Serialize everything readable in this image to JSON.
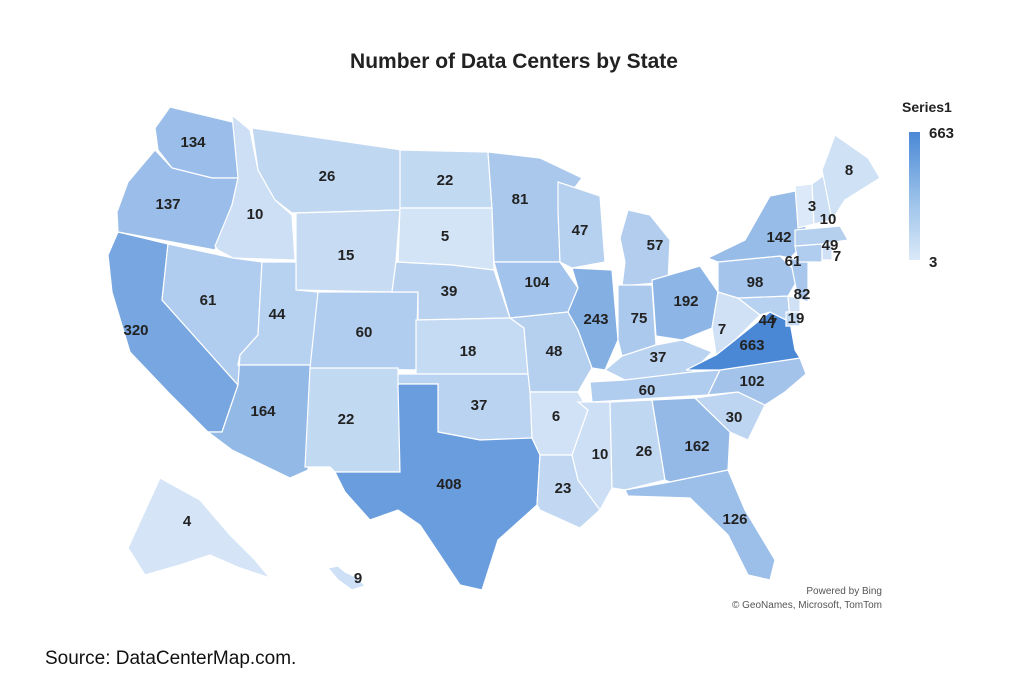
{
  "title": "Number of Data Centers by State",
  "legend": {
    "title": "Series1",
    "max": "663",
    "min": "3",
    "color_max": "#4a88d6",
    "color_min": "#dbe9f8"
  },
  "attribution": {
    "line1": "Powered by Bing",
    "line2": "© GeoNames, Microsoft, TomTom"
  },
  "source": "Source: DataCenterMap.com.",
  "chart_data": {
    "type": "choropleth",
    "scale": {
      "min": 3,
      "max": 663
    },
    "states": [
      {
        "state": "WA",
        "value": 134
      },
      {
        "state": "OR",
        "value": 137
      },
      {
        "state": "CA",
        "value": 320
      },
      {
        "state": "ID",
        "value": 10
      },
      {
        "state": "NV",
        "value": 61
      },
      {
        "state": "MT",
        "value": 26
      },
      {
        "state": "WY",
        "value": 15
      },
      {
        "state": "UT",
        "value": 44
      },
      {
        "state": "AZ",
        "value": 164
      },
      {
        "state": "CO",
        "value": 60
      },
      {
        "state": "NM",
        "value": 22
      },
      {
        "state": "ND",
        "value": 22
      },
      {
        "state": "SD",
        "value": 5
      },
      {
        "state": "NE",
        "value": 39
      },
      {
        "state": "KS",
        "value": 18
      },
      {
        "state": "OK",
        "value": 37
      },
      {
        "state": "TX",
        "value": 408
      },
      {
        "state": "MN",
        "value": 81
      },
      {
        "state": "IA",
        "value": 104
      },
      {
        "state": "MO",
        "value": 48
      },
      {
        "state": "AR",
        "value": 6
      },
      {
        "state": "LA",
        "value": 23
      },
      {
        "state": "WI",
        "value": 47
      },
      {
        "state": "IL",
        "value": 243
      },
      {
        "state": "MI",
        "value": 57
      },
      {
        "state": "IN",
        "value": 75
      },
      {
        "state": "OH",
        "value": 192
      },
      {
        "state": "KY",
        "value": 37
      },
      {
        "state": "TN",
        "value": 60
      },
      {
        "state": "MS",
        "value": 10
      },
      {
        "state": "AL",
        "value": 26
      },
      {
        "state": "GA",
        "value": 162
      },
      {
        "state": "FL",
        "value": 126
      },
      {
        "state": "SC",
        "value": 30
      },
      {
        "state": "NC",
        "value": 102
      },
      {
        "state": "VA",
        "value": 663
      },
      {
        "state": "WV",
        "value": 7
      },
      {
        "state": "MD",
        "value": 44
      },
      {
        "state": "DE",
        "value": 7
      },
      {
        "state": "DC",
        "value": 19
      },
      {
        "state": "PA",
        "value": 98
      },
      {
        "state": "NJ",
        "value": 82
      },
      {
        "state": "NY",
        "value": 142
      },
      {
        "state": "CT",
        "value": 61
      },
      {
        "state": "RI",
        "value": 7
      },
      {
        "state": "MA",
        "value": 49
      },
      {
        "state": "VT",
        "value": 3
      },
      {
        "state": "NH",
        "value": 10
      },
      {
        "state": "ME",
        "value": 8
      },
      {
        "state": "AK",
        "value": 4
      },
      {
        "state": "HI",
        "value": 9
      }
    ]
  }
}
